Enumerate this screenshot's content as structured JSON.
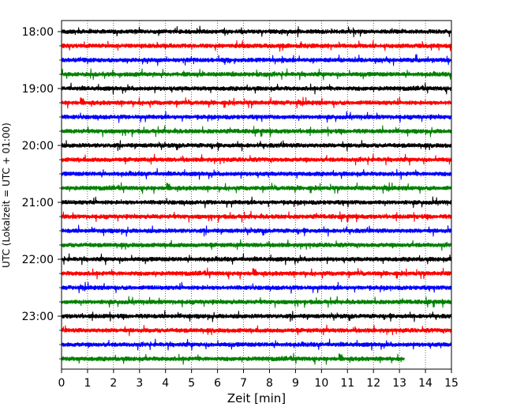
{
  "chart_data": {
    "type": "line",
    "title": "",
    "xlabel": "Zeit  [min]",
    "ylabel": "UTC (Lokalzeit = UTC + 01:00)",
    "xlim": [
      0,
      15
    ],
    "x_ticks": [
      "0",
      "1",
      "2",
      "3",
      "4",
      "5",
      "6",
      "7",
      "8",
      "9",
      "10",
      "11",
      "12",
      "13",
      "14",
      "15"
    ],
    "y_ticks": [
      "18:00",
      "19:00",
      "20:00",
      "21:00",
      "22:00",
      "23:00"
    ],
    "grid": "vertical dotted",
    "traces": [
      {
        "start": "18:00",
        "color": "#000000",
        "end_min": 15
      },
      {
        "start": "18:15",
        "color": "#ff0000",
        "end_min": 15
      },
      {
        "start": "18:30",
        "color": "#0000ff",
        "end_min": 15
      },
      {
        "start": "18:45",
        "color": "#008000",
        "end_min": 15
      },
      {
        "start": "19:00",
        "color": "#000000",
        "end_min": 15
      },
      {
        "start": "19:15",
        "color": "#ff0000",
        "end_min": 15
      },
      {
        "start": "19:30",
        "color": "#0000ff",
        "end_min": 15
      },
      {
        "start": "19:45",
        "color": "#008000",
        "end_min": 15
      },
      {
        "start": "20:00",
        "color": "#000000",
        "end_min": 15
      },
      {
        "start": "20:15",
        "color": "#ff0000",
        "end_min": 15
      },
      {
        "start": "20:30",
        "color": "#0000ff",
        "end_min": 15
      },
      {
        "start": "20:45",
        "color": "#008000",
        "end_min": 15
      },
      {
        "start": "21:00",
        "color": "#000000",
        "end_min": 15
      },
      {
        "start": "21:15",
        "color": "#ff0000",
        "end_min": 15
      },
      {
        "start": "21:30",
        "color": "#0000ff",
        "end_min": 15
      },
      {
        "start": "21:45",
        "color": "#008000",
        "end_min": 15
      },
      {
        "start": "22:00",
        "color": "#000000",
        "end_min": 15
      },
      {
        "start": "22:15",
        "color": "#ff0000",
        "end_min": 15
      },
      {
        "start": "22:30",
        "color": "#0000ff",
        "end_min": 15
      },
      {
        "start": "22:45",
        "color": "#008000",
        "end_min": 15
      },
      {
        "start": "23:00",
        "color": "#000000",
        "end_min": 15
      },
      {
        "start": "23:15",
        "color": "#ff0000",
        "end_min": 15
      },
      {
        "start": "23:30",
        "color": "#0000ff",
        "end_min": 15
      },
      {
        "start": "23:45",
        "color": "#008000",
        "end_min": 13.2
      }
    ]
  }
}
